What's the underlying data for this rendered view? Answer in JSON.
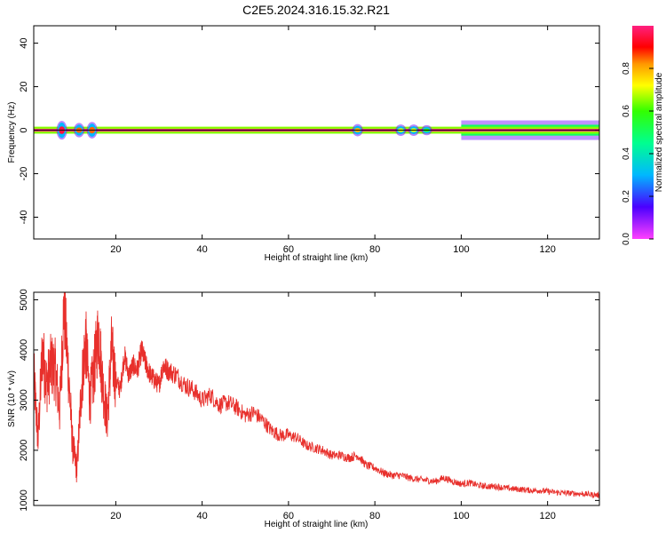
{
  "title": "C2E5.2024.316.15.32.R21",
  "colors": {
    "snr_line": "#e8302c",
    "axis": "#000000",
    "background": "#ffffff"
  },
  "chart_data": [
    {
      "type": "heatmap",
      "name": "spectrogram",
      "title": "C2E5.2024.316.15.32.R21",
      "xlabel": "Height of straight line (km)",
      "ylabel": "Frequency (Hz)",
      "xlim": [
        1,
        132
      ],
      "ylim": [
        -50,
        48
      ],
      "xticks": [
        20,
        40,
        60,
        80,
        100,
        120
      ],
      "yticks": [
        -40,
        -20,
        0,
        20,
        40
      ],
      "colorbar": {
        "label": "Normalized spectral amplitude",
        "range": [
          0,
          1
        ],
        "ticks": [
          "0.0",
          "0.2",
          "0.4",
          "0.6",
          "0.8"
        ],
        "colormap": "rainbow (magenta-blue-cyan-green-yellow-orange-red-pink)"
      },
      "bands": [
        {
          "x": [
            1,
            132
          ],
          "halfwidth_hz": 0.6,
          "amplitude": 1.0
        },
        {
          "x": [
            1,
            132
          ],
          "halfwidth_hz": 1.6,
          "amplitude": 0.65
        },
        {
          "x": [
            100,
            132
          ],
          "halfwidth_hz": 2.5,
          "amplitude": 0.5
        },
        {
          "x": [
            100,
            132
          ],
          "halfwidth_hz": 4.5,
          "amplitude": 0.12
        }
      ],
      "blobs": [
        {
          "x": 7.5,
          "halfwidth_hz": 3.5,
          "amplitude": 0.95
        },
        {
          "x": 11.5,
          "halfwidth_hz": 2.5,
          "amplitude": 0.85
        },
        {
          "x": 14.5,
          "halfwidth_hz": 3.0,
          "amplitude": 0.85
        },
        {
          "x": 76,
          "halfwidth_hz": 2.0,
          "amplitude": 0.8
        },
        {
          "x": 86,
          "halfwidth_hz": 1.8,
          "amplitude": 0.7
        },
        {
          "x": 89,
          "halfwidth_hz": 1.8,
          "amplitude": 0.7
        },
        {
          "x": 92,
          "halfwidth_hz": 1.5,
          "amplitude": 0.6
        }
      ],
      "grid": false,
      "legend": "none"
    },
    {
      "type": "line",
      "name": "snr",
      "xlabel": "Height of straight line (km)",
      "ylabel": "SNR (10 * v/v)",
      "xlim": [
        1,
        132
      ],
      "ylim": [
        900,
        5150
      ],
      "xticks": [
        20,
        40,
        60,
        80,
        100,
        120
      ],
      "yticks": [
        1000,
        2000,
        3000,
        4000,
        5000
      ],
      "grid": false,
      "legend": "none",
      "series": [
        {
          "color": "#e8302c",
          "x": [
            1,
            2,
            3,
            4,
            5,
            6,
            7,
            8,
            9,
            10,
            11,
            12,
            13,
            14,
            15,
            16,
            17,
            18,
            19,
            20,
            21,
            22,
            23,
            24,
            25,
            26,
            27,
            28,
            29,
            30,
            31,
            32,
            34,
            36,
            38,
            40,
            42,
            44,
            46,
            48,
            50,
            52,
            54,
            56,
            58,
            60,
            62,
            64,
            66,
            68,
            70,
            72,
            74,
            76,
            78,
            80,
            82,
            84,
            86,
            88,
            90,
            92,
            94,
            96,
            98,
            100,
            102,
            104,
            106,
            108,
            110,
            112,
            114,
            116,
            118,
            120,
            122,
            124,
            126,
            128,
            130,
            132
          ],
          "y": [
            3500,
            2200,
            4000,
            3300,
            3700,
            3600,
            2800,
            4900,
            3600,
            2100,
            1600,
            3200,
            4200,
            3000,
            3600,
            4400,
            3300,
            2600,
            4000,
            3400,
            3200,
            3900,
            3500,
            3700,
            3600,
            4000,
            3700,
            3500,
            3400,
            3300,
            3700,
            3600,
            3500,
            3300,
            3200,
            3000,
            3100,
            2900,
            2950,
            2850,
            2700,
            2750,
            2600,
            2400,
            2300,
            2300,
            2250,
            2100,
            2050,
            2000,
            1900,
            1900,
            1850,
            1900,
            1700,
            1650,
            1550,
            1500,
            1500,
            1450,
            1420,
            1400,
            1380,
            1450,
            1380,
            1330,
            1350,
            1300,
            1280,
            1280,
            1250,
            1230,
            1220,
            1200,
            1200,
            1180,
            1160,
            1150,
            1140,
            1130,
            1120,
            1100
          ]
        }
      ]
    }
  ]
}
